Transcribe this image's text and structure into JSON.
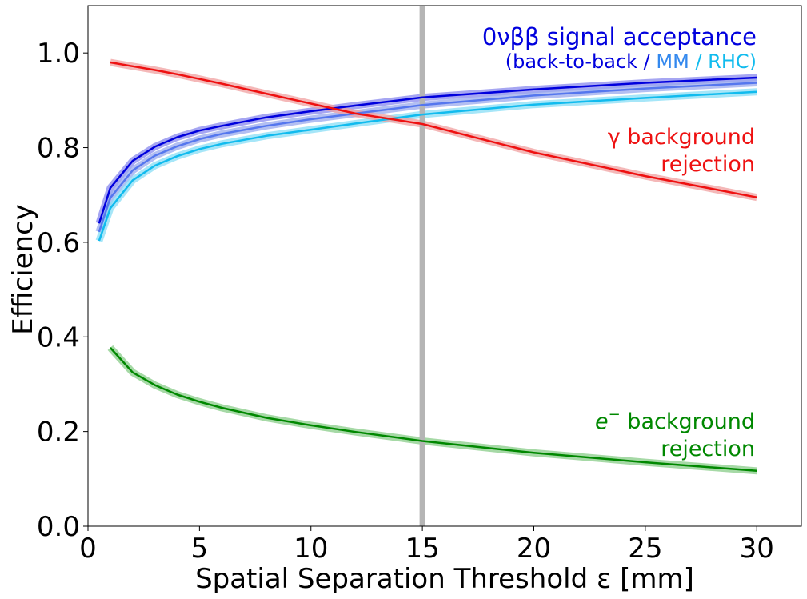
{
  "chart_data": {
    "type": "line",
    "xlabel": "Spatial Separation Threshold ε [mm]",
    "ylabel": "Efficiency",
    "xlim": [
      0,
      32
    ],
    "ylim": [
      0,
      1.1
    ],
    "xticks": [
      0,
      5,
      10,
      15,
      20,
      25,
      30
    ],
    "xtick_labels": [
      "0",
      "5",
      "10",
      "15",
      "20",
      "25",
      "30"
    ],
    "yticks": [
      0.0,
      0.2,
      0.4,
      0.6,
      0.8,
      1.0
    ],
    "ytick_labels": [
      "0.0",
      "0.2",
      "0.4",
      "0.6",
      "0.8",
      "1.0"
    ],
    "grid": false,
    "vline": {
      "x": 15,
      "color": "#b5b5b5"
    },
    "series": [
      {
        "color": "#0000dd",
        "band": "#8888ee",
        "x": [
          0.5,
          1,
          2,
          3,
          4,
          5,
          6,
          8,
          10,
          12,
          15,
          20,
          25,
          30
        ],
        "y": [
          0.64,
          0.715,
          0.772,
          0.802,
          0.822,
          0.836,
          0.846,
          0.864,
          0.877,
          0.889,
          0.906,
          0.923,
          0.937,
          0.948
        ]
      },
      {
        "color": "#5577ee",
        "band": "#99aaee",
        "x": [
          0.5,
          1,
          2,
          3,
          4,
          5,
          6,
          8,
          10,
          12,
          15,
          20,
          25,
          30
        ],
        "y": [
          0.622,
          0.694,
          0.752,
          0.783,
          0.803,
          0.818,
          0.829,
          0.846,
          0.86,
          0.872,
          0.89,
          0.91,
          0.925,
          0.937
        ]
      },
      {
        "color": "#11bbee",
        "band": "#88ddf5",
        "x": [
          0.5,
          1,
          2,
          3,
          4,
          5,
          6,
          8,
          10,
          12,
          15,
          20,
          25,
          30
        ],
        "y": [
          0.603,
          0.672,
          0.731,
          0.762,
          0.782,
          0.797,
          0.808,
          0.825,
          0.838,
          0.851,
          0.87,
          0.891,
          0.905,
          0.918
        ]
      },
      {
        "color": "#ee1111",
        "band": "#f0a0a0",
        "x": [
          1,
          2,
          3,
          4,
          5,
          6,
          8,
          10,
          12,
          15,
          20,
          25,
          30
        ],
        "y": [
          0.98,
          0.972,
          0.964,
          0.955,
          0.945,
          0.935,
          0.914,
          0.893,
          0.872,
          0.85,
          0.79,
          0.74,
          0.695
        ]
      },
      {
        "color": "#008800",
        "band": "#88cc88",
        "x": [
          1,
          2,
          3,
          4,
          5,
          6,
          8,
          10,
          12,
          15,
          20,
          25,
          30
        ],
        "y": [
          0.377,
          0.325,
          0.298,
          0.278,
          0.263,
          0.25,
          0.229,
          0.213,
          0.199,
          0.18,
          0.155,
          0.135,
          0.117
        ]
      }
    ],
    "annotations": {
      "signal_title": "0νββ signal acceptance",
      "signal_sub_1": "(back-to-back / ",
      "signal_sub_2": "MM",
      "signal_sub_3": " / ",
      "signal_sub_4": "RHC)",
      "gamma_1": "γ background",
      "gamma_2": "rejection",
      "electron_1": "e",
      "electron_sup": "−",
      "electron_1b": " background",
      "electron_2": "rejection"
    },
    "colors": {
      "blue": "#0000dd",
      "mid_blue": "#3388ee",
      "cyan": "#11bbee",
      "red": "#ee1111",
      "green": "#008800"
    }
  }
}
